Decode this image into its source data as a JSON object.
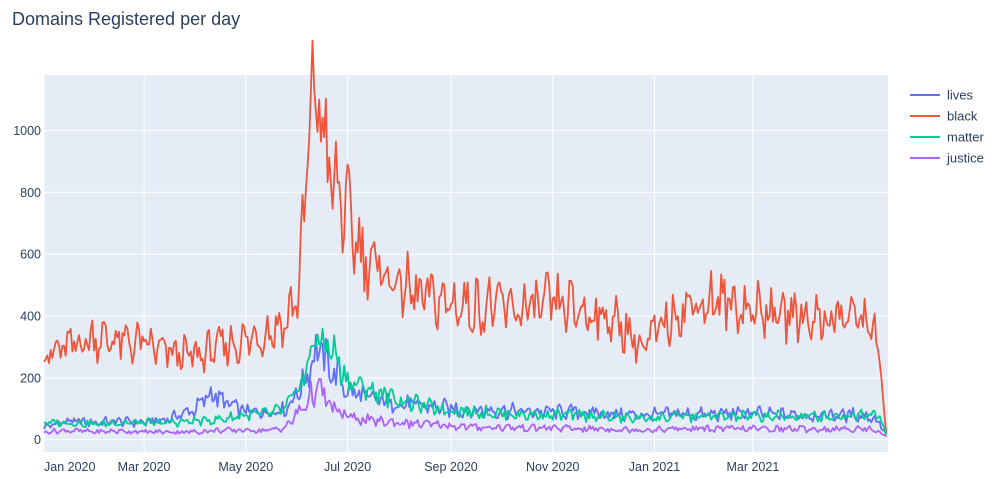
{
  "chart_data": {
    "type": "line",
    "title": "Domains Registered per day",
    "xlabel": "",
    "ylabel": "",
    "x_range": [
      "2020-01-01",
      "2021-05-21"
    ],
    "ylim": [
      -40,
      1180
    ],
    "y_ticks": [
      0,
      200,
      400,
      600,
      800,
      1000
    ],
    "x_ticks": [
      {
        "date": "2020-01-01",
        "label": "Jan 2020"
      },
      {
        "date": "2020-03-01",
        "label": "Mar 2020"
      },
      {
        "date": "2020-05-01",
        "label": "May 2020"
      },
      {
        "date": "2020-07-01",
        "label": "Jul 2020"
      },
      {
        "date": "2020-09-01",
        "label": "Sep 2020"
      },
      {
        "date": "2020-11-01",
        "label": "Nov 2020"
      },
      {
        "date": "2021-01-01",
        "label": "Jan 2021"
      },
      {
        "date": "2021-03-01",
        "label": "Mar 2021"
      }
    ],
    "legend_position": "top-right, outside plot",
    "colors": {
      "plot_background": "#e5ecf6",
      "grid": "#ffffff",
      "text": "#2a3f5f"
    },
    "series": [
      {
        "name": "lives",
        "color": "#636efa",
        "points": [
          [
            "2020-01-01",
            40
          ],
          [
            "2020-01-15",
            60
          ],
          [
            "2020-02-01",
            55
          ],
          [
            "2020-02-15",
            60
          ],
          [
            "2020-03-01",
            55
          ],
          [
            "2020-03-15",
            65
          ],
          [
            "2020-04-01",
            100
          ],
          [
            "2020-04-10",
            150
          ],
          [
            "2020-04-20",
            115
          ],
          [
            "2020-05-01",
            90
          ],
          [
            "2020-05-15",
            90
          ],
          [
            "2020-05-25",
            100
          ],
          [
            "2020-06-05",
            185
          ],
          [
            "2020-06-10",
            270
          ],
          [
            "2020-06-15",
            290
          ],
          [
            "2020-06-20",
            230
          ],
          [
            "2020-06-25",
            210
          ],
          [
            "2020-07-01",
            160
          ],
          [
            "2020-07-15",
            130
          ],
          [
            "2020-08-01",
            115
          ],
          [
            "2020-08-15",
            110
          ],
          [
            "2020-09-01",
            100
          ],
          [
            "2020-09-15",
            95
          ],
          [
            "2020-10-01",
            95
          ],
          [
            "2020-10-15",
            90
          ],
          [
            "2020-11-01",
            90
          ],
          [
            "2020-11-15",
            90
          ],
          [
            "2020-12-01",
            85
          ],
          [
            "2020-12-15",
            80
          ],
          [
            "2021-01-01",
            80
          ],
          [
            "2021-01-15",
            85
          ],
          [
            "2021-02-01",
            80
          ],
          [
            "2021-02-15",
            85
          ],
          [
            "2021-03-01",
            85
          ],
          [
            "2021-03-15",
            80
          ],
          [
            "2021-04-01",
            80
          ],
          [
            "2021-04-15",
            80
          ],
          [
            "2021-05-01",
            80
          ],
          [
            "2021-05-10",
            75
          ],
          [
            "2021-05-15",
            60
          ],
          [
            "2021-05-20",
            20
          ]
        ]
      },
      {
        "name": "black",
        "color": "#ef553b",
        "points": [
          [
            "2020-01-01",
            270
          ],
          [
            "2020-01-15",
            300
          ],
          [
            "2020-02-01",
            330
          ],
          [
            "2020-02-15",
            320
          ],
          [
            "2020-03-01",
            310
          ],
          [
            "2020-03-15",
            280
          ],
          [
            "2020-04-01",
            270
          ],
          [
            "2020-04-15",
            300
          ],
          [
            "2020-05-01",
            320
          ],
          [
            "2020-05-15",
            350
          ],
          [
            "2020-05-25",
            380
          ],
          [
            "2020-06-01",
            470
          ],
          [
            "2020-06-05",
            700
          ],
          [
            "2020-06-08",
            1030
          ],
          [
            "2020-06-12",
            1100
          ],
          [
            "2020-06-16",
            1050
          ],
          [
            "2020-06-20",
            850
          ],
          [
            "2020-06-25",
            800
          ],
          [
            "2020-07-01",
            720
          ],
          [
            "2020-07-10",
            600
          ],
          [
            "2020-07-20",
            550
          ],
          [
            "2020-08-01",
            500
          ],
          [
            "2020-08-15",
            460
          ],
          [
            "2020-09-01",
            440
          ],
          [
            "2020-09-15",
            430
          ],
          [
            "2020-10-01",
            430
          ],
          [
            "2020-10-15",
            420
          ],
          [
            "2020-11-01",
            440
          ],
          [
            "2020-11-15",
            420
          ],
          [
            "2020-12-01",
            400
          ],
          [
            "2020-12-15",
            360
          ],
          [
            "2020-12-25",
            290
          ],
          [
            "2021-01-01",
            340
          ],
          [
            "2021-01-15",
            420
          ],
          [
            "2021-02-01",
            450
          ],
          [
            "2021-02-15",
            440
          ],
          [
            "2021-03-01",
            420
          ],
          [
            "2021-03-15",
            410
          ],
          [
            "2021-04-01",
            400
          ],
          [
            "2021-04-15",
            390
          ],
          [
            "2021-05-01",
            400
          ],
          [
            "2021-05-10",
            380
          ],
          [
            "2021-05-15",
            330
          ],
          [
            "2021-05-18",
            120
          ],
          [
            "2021-05-20",
            20
          ]
        ]
      },
      {
        "name": "matter",
        "color": "#00cc96",
        "points": [
          [
            "2020-01-01",
            55
          ],
          [
            "2020-01-15",
            55
          ],
          [
            "2020-02-01",
            50
          ],
          [
            "2020-02-15",
            55
          ],
          [
            "2020-03-01",
            55
          ],
          [
            "2020-03-15",
            55
          ],
          [
            "2020-04-01",
            60
          ],
          [
            "2020-04-15",
            65
          ],
          [
            "2020-05-01",
            80
          ],
          [
            "2020-05-15",
            85
          ],
          [
            "2020-05-25",
            100
          ],
          [
            "2020-06-05",
            200
          ],
          [
            "2020-06-10",
            310
          ],
          [
            "2020-06-15",
            320
          ],
          [
            "2020-06-20",
            300
          ],
          [
            "2020-06-25",
            260
          ],
          [
            "2020-07-01",
            190
          ],
          [
            "2020-07-15",
            160
          ],
          [
            "2020-08-01",
            130
          ],
          [
            "2020-08-15",
            110
          ],
          [
            "2020-09-01",
            95
          ],
          [
            "2020-09-15",
            90
          ],
          [
            "2020-10-01",
            85
          ],
          [
            "2020-10-15",
            80
          ],
          [
            "2020-11-01",
            80
          ],
          [
            "2020-11-15",
            80
          ],
          [
            "2020-12-01",
            75
          ],
          [
            "2020-12-15",
            70
          ],
          [
            "2021-01-01",
            70
          ],
          [
            "2021-01-15",
            75
          ],
          [
            "2021-02-01",
            75
          ],
          [
            "2021-02-15",
            75
          ],
          [
            "2021-03-01",
            75
          ],
          [
            "2021-03-15",
            75
          ],
          [
            "2021-04-01",
            75
          ],
          [
            "2021-04-15",
            75
          ],
          [
            "2021-05-01",
            80
          ],
          [
            "2021-05-10",
            85
          ],
          [
            "2021-05-15",
            90
          ],
          [
            "2021-05-20",
            15
          ]
        ]
      },
      {
        "name": "justice",
        "color": "#ab63fa",
        "points": [
          [
            "2020-01-01",
            25
          ],
          [
            "2020-01-15",
            30
          ],
          [
            "2020-02-01",
            25
          ],
          [
            "2020-02-15",
            28
          ],
          [
            "2020-03-01",
            25
          ],
          [
            "2020-03-15",
            25
          ],
          [
            "2020-04-01",
            25
          ],
          [
            "2020-04-15",
            30
          ],
          [
            "2020-05-01",
            30
          ],
          [
            "2020-05-15",
            30
          ],
          [
            "2020-05-25",
            40
          ],
          [
            "2020-06-05",
            110
          ],
          [
            "2020-06-10",
            150
          ],
          [
            "2020-06-15",
            160
          ],
          [
            "2020-06-20",
            110
          ],
          [
            "2020-06-25",
            90
          ],
          [
            "2020-07-01",
            75
          ],
          [
            "2020-07-15",
            60
          ],
          [
            "2020-08-01",
            55
          ],
          [
            "2020-08-15",
            50
          ],
          [
            "2020-09-01",
            45
          ],
          [
            "2020-09-15",
            40
          ],
          [
            "2020-10-01",
            40
          ],
          [
            "2020-10-15",
            38
          ],
          [
            "2020-11-01",
            38
          ],
          [
            "2020-11-15",
            35
          ],
          [
            "2020-12-01",
            35
          ],
          [
            "2020-12-15",
            32
          ],
          [
            "2021-01-01",
            32
          ],
          [
            "2021-01-15",
            35
          ],
          [
            "2021-02-01",
            35
          ],
          [
            "2021-02-15",
            35
          ],
          [
            "2021-03-01",
            35
          ],
          [
            "2021-03-15",
            35
          ],
          [
            "2021-04-01",
            35
          ],
          [
            "2021-04-15",
            33
          ],
          [
            "2021-05-01",
            35
          ],
          [
            "2021-05-10",
            35
          ],
          [
            "2021-05-15",
            30
          ],
          [
            "2021-05-20",
            10
          ]
        ]
      }
    ]
  }
}
